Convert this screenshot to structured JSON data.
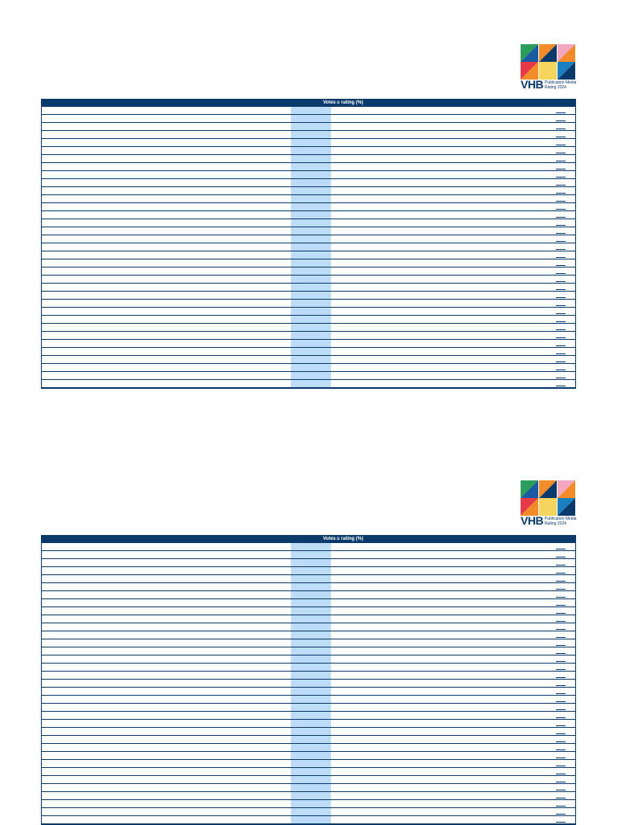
{
  "sections": [
    {
      "logo": {
        "brand": "VHB",
        "caption_line1": "Publication Media",
        "caption_line2": "Rating 2024"
      },
      "table": {
        "header": "Votes ≥ rating (%)"
      }
    },
    {
      "logo": {
        "brand": "VHB",
        "caption_line1": "Publication Media",
        "caption_line2": "Rating 2024"
      },
      "table": {
        "header": "Votes ≥ rating (%)"
      }
    }
  ]
}
